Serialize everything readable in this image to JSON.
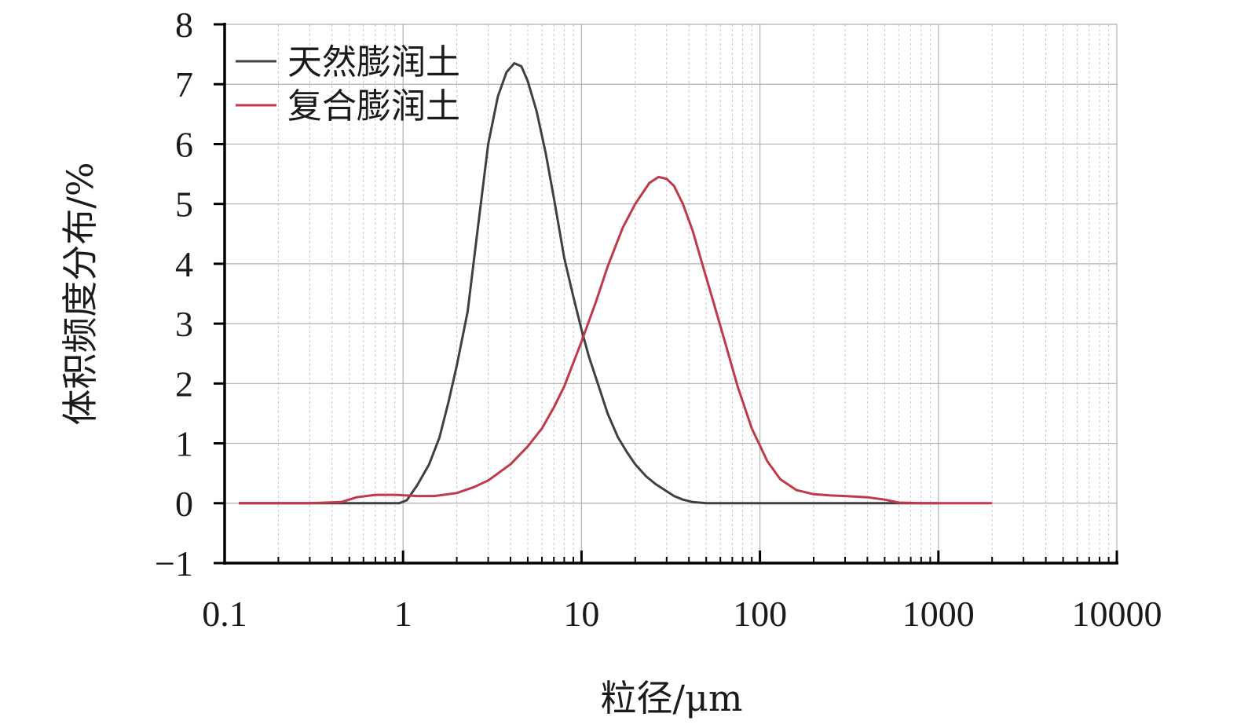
{
  "chart_data": {
    "type": "line",
    "title": "",
    "xlabel": "粒径/μm",
    "ylabel": "体积频度分布/%",
    "xscale": "log",
    "xlim": [
      0.1,
      10000
    ],
    "ylim": [
      -1,
      8
    ],
    "xticks": [
      0.1,
      1,
      10,
      100,
      1000,
      10000
    ],
    "xtick_labels": [
      "0.1",
      "1",
      "10",
      "100",
      "1000",
      "10000"
    ],
    "yticks": [
      -1,
      0,
      1,
      2,
      3,
      4,
      5,
      6,
      7,
      8
    ],
    "ytick_labels": [
      "−1",
      "0",
      "1",
      "2",
      "3",
      "4",
      "5",
      "6",
      "7",
      "8"
    ],
    "grid": true,
    "legend_position": "top-left",
    "series": [
      {
        "name": "天然膨润土",
        "color": "#404040",
        "x": [
          0.12,
          0.5,
          0.95,
          1.05,
          1.2,
          1.4,
          1.6,
          1.8,
          2.0,
          2.3,
          2.6,
          3.0,
          3.4,
          3.8,
          4.2,
          4.6,
          5.0,
          5.6,
          6.3,
          7.0,
          8.0,
          9.0,
          10,
          11,
          12.5,
          14,
          16,
          18,
          20,
          23,
          26,
          30,
          33,
          37,
          42,
          50,
          100,
          1000
        ],
        "values": [
          0,
          0,
          0,
          0.05,
          0.3,
          0.65,
          1.1,
          1.7,
          2.3,
          3.2,
          4.5,
          6.0,
          6.8,
          7.2,
          7.35,
          7.3,
          7.05,
          6.55,
          5.85,
          5.1,
          4.1,
          3.45,
          2.9,
          2.45,
          1.95,
          1.5,
          1.1,
          0.85,
          0.65,
          0.45,
          0.32,
          0.2,
          0.12,
          0.06,
          0.02,
          0,
          0,
          0
        ]
      },
      {
        "name": "复合膨润土",
        "color": "#c0394a",
        "x": [
          0.12,
          0.3,
          0.45,
          0.55,
          0.7,
          0.9,
          1.2,
          1.5,
          2.0,
          2.5,
          3.0,
          4.0,
          5.0,
          6.0,
          7.0,
          8.0,
          10,
          12,
          14,
          17,
          20,
          24,
          27,
          30,
          33,
          37,
          42,
          48,
          55,
          65,
          75,
          90,
          110,
          130,
          160,
          200,
          250,
          300,
          400,
          500,
          600,
          800,
          1200,
          2000
        ],
        "values": [
          0,
          0,
          0.02,
          0.1,
          0.14,
          0.14,
          0.12,
          0.12,
          0.17,
          0.27,
          0.38,
          0.65,
          0.95,
          1.25,
          1.6,
          1.95,
          2.7,
          3.35,
          3.95,
          4.6,
          5.0,
          5.35,
          5.45,
          5.42,
          5.3,
          5.0,
          4.55,
          3.95,
          3.35,
          2.6,
          1.95,
          1.25,
          0.7,
          0.4,
          0.22,
          0.15,
          0.13,
          0.12,
          0.1,
          0.06,
          0.01,
          0,
          0,
          0
        ]
      }
    ]
  }
}
